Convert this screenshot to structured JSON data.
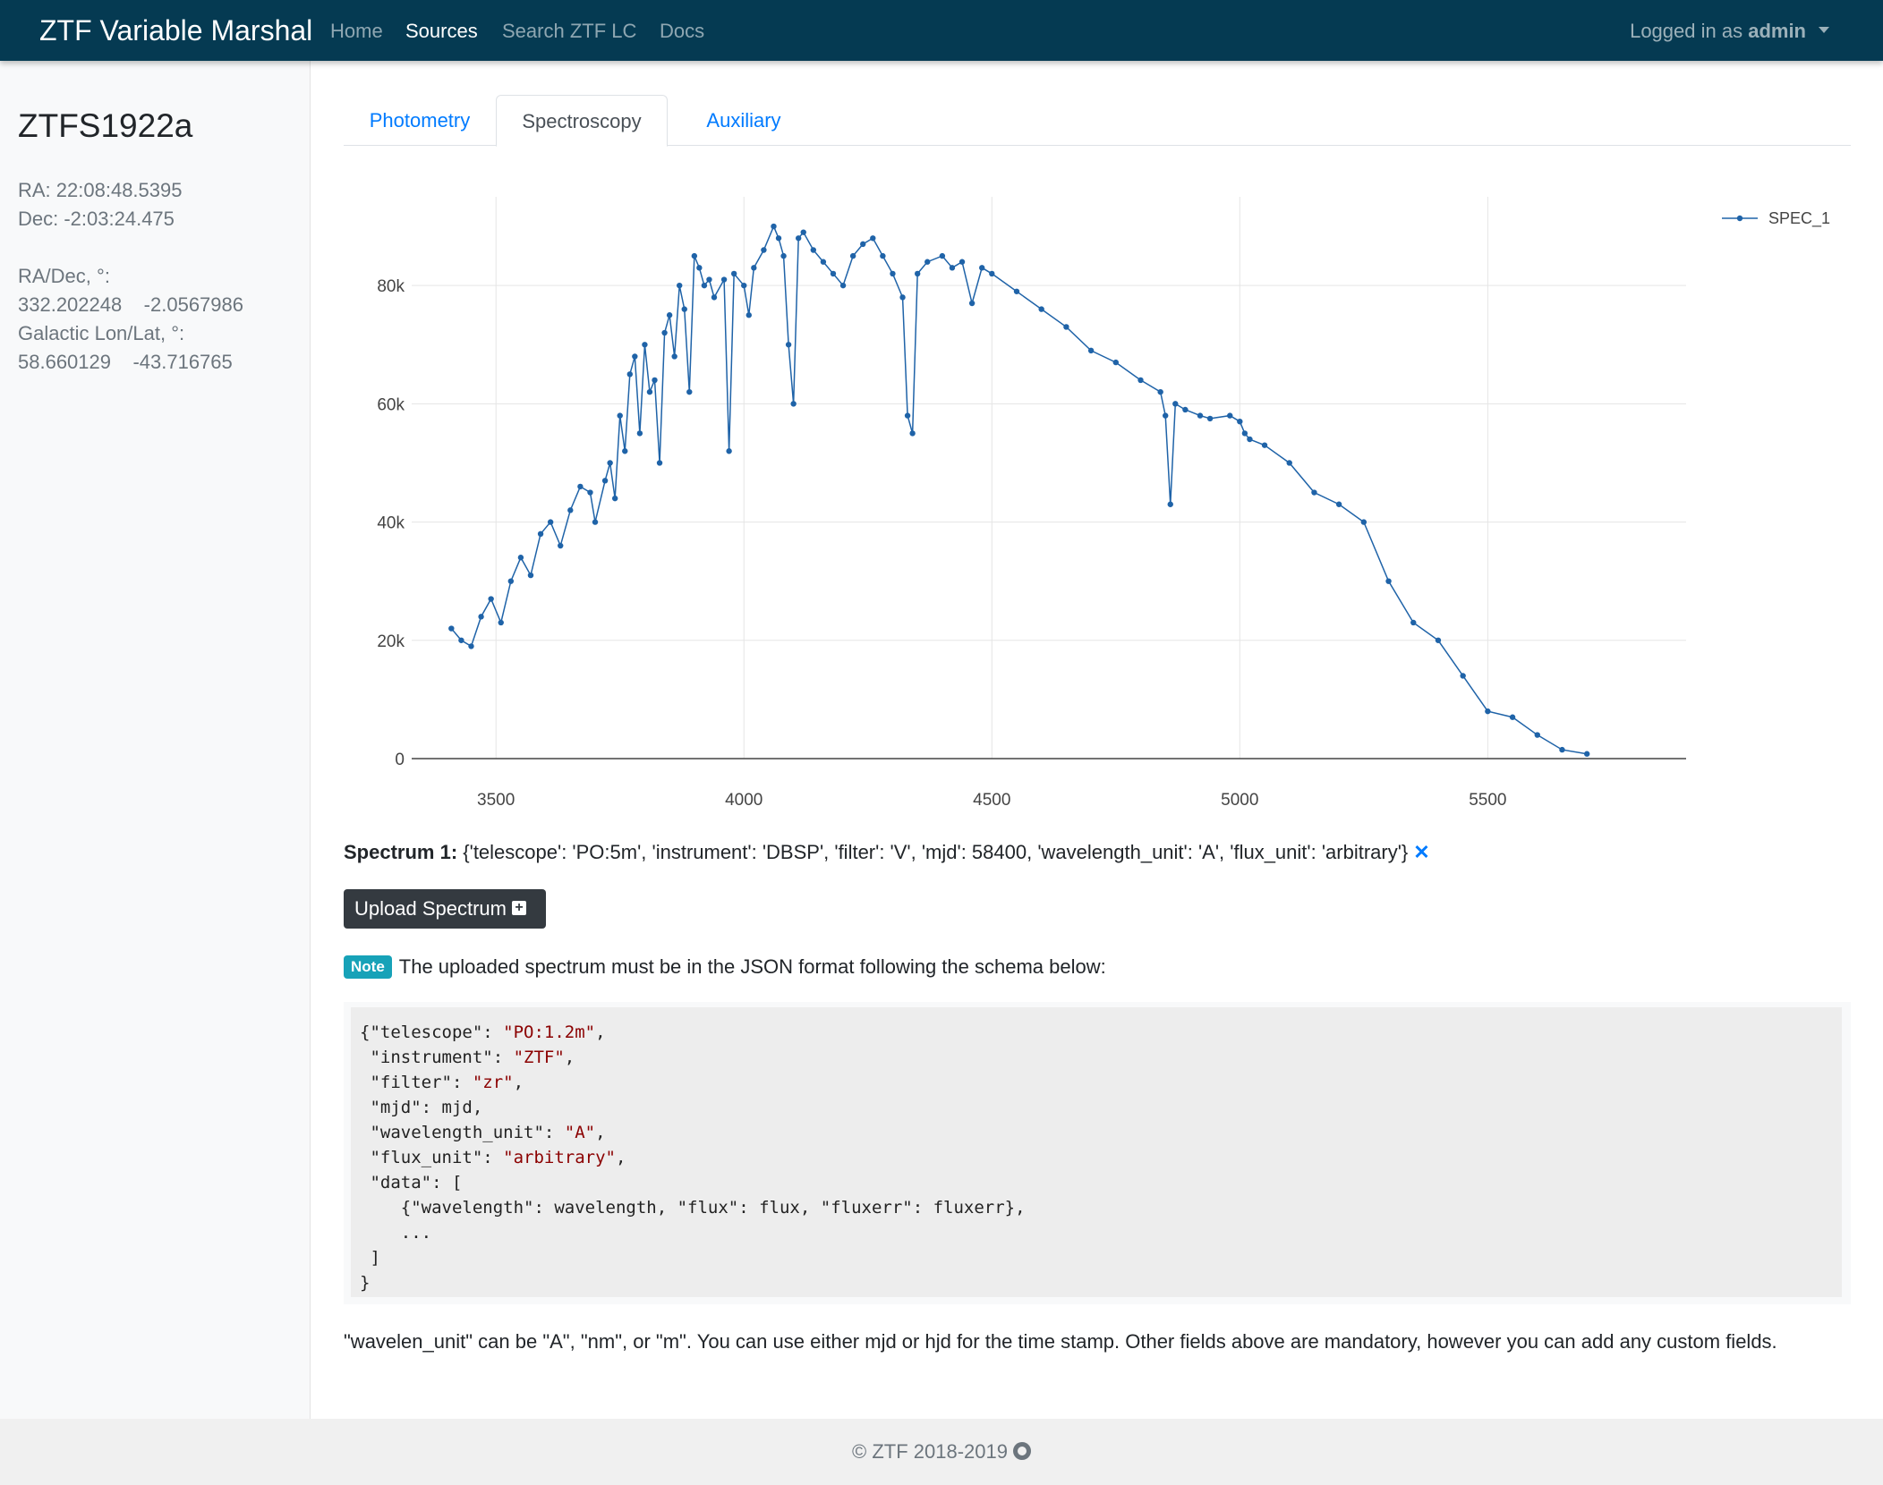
{
  "navbar": {
    "brand": "ZTF Variable Marshal",
    "links": [
      "Home",
      "Sources",
      "Search ZTF LC",
      "Docs"
    ],
    "user_prefix": "Logged in as",
    "user_name": "admin"
  },
  "sidebar": {
    "source_id": "ZTFS1922a",
    "ra": "RA: 22:08:48.5395",
    "dec": "Dec: -2:03:24.475",
    "radec_label": "RA/Dec, °:",
    "radec_value": "332.202248    -2.0567986",
    "gal_label": "Galactic Lon/Lat, °:",
    "gal_value": "58.660129    -43.716765"
  },
  "tabs": [
    "Photometry",
    "Spectroscopy",
    "Auxiliary"
  ],
  "chart_data": {
    "type": "line",
    "title": "",
    "xlabel": "",
    "ylabel": "",
    "xlim": [
      3330,
      5900
    ],
    "ylim": [
      0,
      95000
    ],
    "x_ticks": [
      3500,
      4000,
      4500,
      5000,
      5500
    ],
    "x_tick_labels": [
      "3500",
      "4000",
      "4500",
      "5000",
      "5500"
    ],
    "y_ticks": [
      0,
      20000,
      40000,
      60000,
      80000
    ],
    "y_tick_labels": [
      "0",
      "20k",
      "40k",
      "60k",
      "80k"
    ],
    "grid": true,
    "legend_position": "top-right",
    "color": "#1f63a8",
    "series": [
      {
        "name": "SPEC_1",
        "x": [
          3410,
          3430,
          3450,
          3470,
          3490,
          3510,
          3530,
          3550,
          3570,
          3590,
          3610,
          3630,
          3650,
          3670,
          3690,
          3700,
          3720,
          3730,
          3740,
          3750,
          3760,
          3770,
          3780,
          3790,
          3800,
          3810,
          3820,
          3830,
          3840,
          3850,
          3860,
          3870,
          3880,
          3890,
          3900,
          3910,
          3920,
          3930,
          3940,
          3960,
          3970,
          3980,
          4000,
          4010,
          4020,
          4040,
          4060,
          4070,
          4080,
          4090,
          4100,
          4110,
          4120,
          4140,
          4160,
          4180,
          4200,
          4220,
          4240,
          4260,
          4280,
          4300,
          4320,
          4330,
          4340,
          4350,
          4370,
          4400,
          4420,
          4440,
          4460,
          4480,
          4500,
          4550,
          4600,
          4650,
          4700,
          4750,
          4800,
          4840,
          4850,
          4860,
          4870,
          4890,
          4920,
          4940,
          4980,
          5000,
          5010,
          5020,
          5050,
          5100,
          5150,
          5200,
          5250,
          5300,
          5350,
          5400,
          5450,
          5500,
          5550,
          5600,
          5650,
          5700
        ],
        "y": [
          22000,
          20000,
          19000,
          24000,
          27000,
          23000,
          30000,
          34000,
          31000,
          38000,
          40000,
          36000,
          42000,
          46000,
          45000,
          40000,
          47000,
          50000,
          44000,
          58000,
          52000,
          65000,
          68000,
          55000,
          70000,
          62000,
          64000,
          50000,
          72000,
          75000,
          68000,
          80000,
          76000,
          62000,
          85000,
          83000,
          80000,
          81000,
          78000,
          81000,
          52000,
          82000,
          80000,
          75000,
          83000,
          86000,
          90000,
          88000,
          85000,
          70000,
          60000,
          88000,
          89000,
          86000,
          84000,
          82000,
          80000,
          85000,
          87000,
          88000,
          85000,
          82000,
          78000,
          58000,
          55000,
          82000,
          84000,
          85000,
          83000,
          84000,
          77000,
          83000,
          82000,
          79000,
          76000,
          73000,
          69000,
          67000,
          64000,
          62000,
          58000,
          43000,
          60000,
          59000,
          58000,
          57500,
          58000,
          57000,
          55000,
          54000,
          53000,
          50000,
          45000,
          43000,
          40000,
          30000,
          23000,
          20000,
          14000,
          8000,
          7000,
          4000,
          1500,
          800
        ]
      }
    ]
  },
  "spectrum_info": {
    "label": "Spectrum 1:",
    "text": " {'telescope': 'PO:5m', 'instrument': 'DBSP', 'filter': 'V', 'mjd': 58400, 'wavelength_unit': 'A', 'flux_unit': 'arbitrary'}",
    "remove_glyph": "✕"
  },
  "upload_button": {
    "label": "Upload Spectrum",
    "icon": "plus-square-icon"
  },
  "note": {
    "badge": "Note",
    "text": "The uploaded spectrum must be in the JSON format following the schema below:"
  },
  "schema_code": {
    "lines": [
      [
        [
          "{\"telescope\": ",
          "k"
        ],
        [
          "\"PO:1.2m\"",
          "s"
        ],
        [
          ",",
          "k"
        ]
      ],
      [
        [
          " \"instrument\": ",
          "k"
        ],
        [
          "\"ZTF\"",
          "s"
        ],
        [
          ",",
          "k"
        ]
      ],
      [
        [
          " \"filter\": ",
          "k"
        ],
        [
          "\"zr\"",
          "s"
        ],
        [
          ",",
          "k"
        ]
      ],
      [
        [
          " \"mjd\": mjd,",
          "k"
        ]
      ],
      [
        [
          " \"wavelength_unit\": ",
          "k"
        ],
        [
          "\"A\"",
          "s"
        ],
        [
          ",",
          "k"
        ]
      ],
      [
        [
          " \"flux_unit\": ",
          "k"
        ],
        [
          "\"arbitrary\"",
          "s"
        ],
        [
          ",",
          "k"
        ]
      ],
      [
        [
          " \"data\": [",
          "k"
        ]
      ],
      [
        [
          "    {\"wavelength\": wavelength, \"flux\": flux, \"fluxerr\": fluxerr},",
          "k"
        ]
      ],
      [
        [
          "    ...",
          "k"
        ]
      ],
      [
        [
          " ]",
          "k"
        ]
      ],
      [
        [
          "}",
          "k"
        ]
      ]
    ]
  },
  "info_text": "\"wavelen_unit\" can be \"A\", \"nm\", or \"m\". You can use either mjd or hjd for the time stamp. Other fields above are mandatory, however you can add any custom fields.",
  "footer": {
    "text": "© ZTF 2018-2019",
    "icon": "github-icon"
  }
}
